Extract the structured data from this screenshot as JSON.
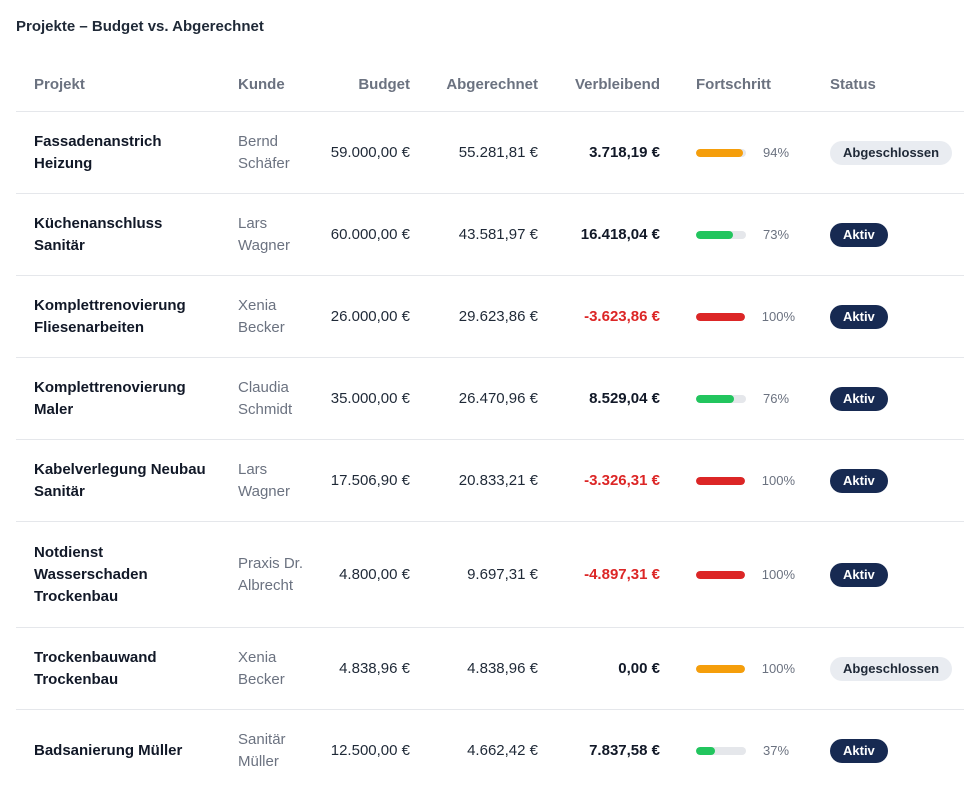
{
  "title": "Projekte – Budget vs. Abgerechnet",
  "columns": {
    "projekt": "Projekt",
    "kunde": "Kunde",
    "budget": "Budget",
    "abgerechnet": "Abgerechnet",
    "verbleibend": "Verbleibend",
    "fortschritt": "Fortschritt",
    "status": "Status"
  },
  "colors": {
    "progress_orange": "#f59e0b",
    "progress_green": "#22c55e",
    "progress_red": "#dc2626",
    "badge_active_bg": "#172a52",
    "badge_done_bg": "#e9ecf1"
  },
  "rows": [
    {
      "projekt": "Fassadenanstrich Heizung",
      "kunde": "Bernd Schäfer",
      "budget": "59.000,00 €",
      "abgerechnet": "55.281,81 €",
      "verbleibend": "3.718,19 €",
      "verbleibend_negative": false,
      "progress": 94,
      "progress_label": "94%",
      "progress_color": "orange",
      "status": "Abgeschlossen",
      "status_kind": "done"
    },
    {
      "projekt": "Küchenanschluss Sanitär",
      "kunde": "Lars Wagner",
      "budget": "60.000,00 €",
      "abgerechnet": "43.581,97 €",
      "verbleibend": "16.418,04 €",
      "verbleibend_negative": false,
      "progress": 73,
      "progress_label": "73%",
      "progress_color": "green",
      "status": "Aktiv",
      "status_kind": "active"
    },
    {
      "projekt": "Komplettrenovierung Fliesenarbeiten",
      "kunde": "Xenia Becker",
      "budget": "26.000,00 €",
      "abgerechnet": "29.623,86 €",
      "verbleibend": "-3.623,86 €",
      "verbleibend_negative": true,
      "progress": 100,
      "progress_label": "100%",
      "progress_color": "red",
      "status": "Aktiv",
      "status_kind": "active"
    },
    {
      "projekt": "Komplettrenovierung Maler",
      "kunde": "Claudia Schmidt",
      "budget": "35.000,00 €",
      "abgerechnet": "26.470,96 €",
      "verbleibend": "8.529,04 €",
      "verbleibend_negative": false,
      "progress": 76,
      "progress_label": "76%",
      "progress_color": "green",
      "status": "Aktiv",
      "status_kind": "active"
    },
    {
      "projekt": "Kabelverlegung Neubau Sanitär",
      "kunde": "Lars Wagner",
      "budget": "17.506,90 €",
      "abgerechnet": "20.833,21 €",
      "verbleibend": "-3.326,31 €",
      "verbleibend_negative": true,
      "progress": 100,
      "progress_label": "100%",
      "progress_color": "red",
      "status": "Aktiv",
      "status_kind": "active"
    },
    {
      "projekt": "Notdienst Wasserschaden Trockenbau",
      "kunde": "Praxis Dr. Albrecht",
      "budget": "4.800,00 €",
      "abgerechnet": "9.697,31 €",
      "verbleibend": "-4.897,31 €",
      "verbleibend_negative": true,
      "progress": 100,
      "progress_label": "100%",
      "progress_color": "red",
      "status": "Aktiv",
      "status_kind": "active"
    },
    {
      "projekt": "Trockenbauwand Trockenbau",
      "kunde": "Xenia Becker",
      "budget": "4.838,96 €",
      "abgerechnet": "4.838,96 €",
      "verbleibend": "0,00 €",
      "verbleibend_negative": false,
      "progress": 100,
      "progress_label": "100%",
      "progress_color": "orange",
      "status": "Abgeschlossen",
      "status_kind": "done"
    },
    {
      "projekt": "Badsanierung Müller",
      "kunde": "Sanitär Müller",
      "budget": "12.500,00 €",
      "abgerechnet": "4.662,42 €",
      "verbleibend": "7.837,58 €",
      "verbleibend_negative": false,
      "progress": 37,
      "progress_label": "37%",
      "progress_color": "green",
      "status": "Aktiv",
      "status_kind": "active"
    }
  ]
}
